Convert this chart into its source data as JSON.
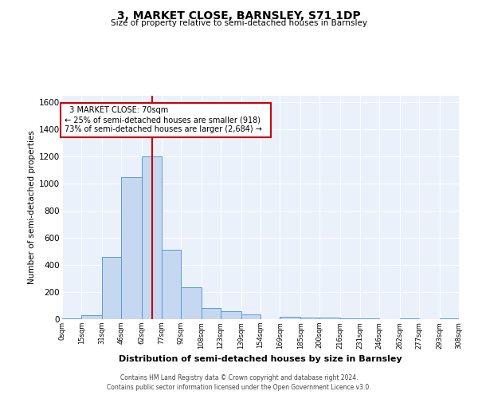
{
  "title": "3, MARKET CLOSE, BARNSLEY, S71 1DP",
  "subtitle": "Size of property relative to semi-detached houses in Barnsley",
  "xlabel": "Distribution of semi-detached houses by size in Barnsley",
  "ylabel": "Number of semi-detached properties",
  "footnote1": "Contains HM Land Registry data © Crown copyright and database right 2024.",
  "footnote2": "Contains public sector information licensed under the Open Government Licence v3.0.",
  "bar_color": "#c5d8f0",
  "bar_edge_color": "#5b9bd5",
  "bin_edges": [
    0,
    15,
    31,
    46,
    62,
    77,
    92,
    108,
    123,
    139,
    154,
    169,
    185,
    200,
    216,
    231,
    246,
    262,
    277,
    293,
    308
  ],
  "bar_heights": [
    5,
    30,
    460,
    1050,
    1200,
    510,
    235,
    85,
    60,
    35,
    0,
    20,
    10,
    10,
    5,
    5,
    0,
    5,
    0,
    5
  ],
  "tick_labels": [
    "0sqm",
    "15sqm",
    "31sqm",
    "46sqm",
    "62sqm",
    "77sqm",
    "92sqm",
    "108sqm",
    "123sqm",
    "139sqm",
    "154sqm",
    "169sqm",
    "185sqm",
    "200sqm",
    "216sqm",
    "231sqm",
    "246sqm",
    "262sqm",
    "277sqm",
    "293sqm",
    "308sqm"
  ],
  "ylim": [
    0,
    1650
  ],
  "yticks": [
    0,
    200,
    400,
    600,
    800,
    1000,
    1200,
    1400,
    1600
  ],
  "red_line_x": 70,
  "annotation_title": "3 MARKET CLOSE: 70sqm",
  "annotation_line1": "← 25% of semi-detached houses are smaller (918)",
  "annotation_line2": "73% of semi-detached houses are larger (2,684) →",
  "annotation_box_color": "#ffffff",
  "annotation_box_edge": "#cc0000",
  "red_line_color": "#cc0000",
  "background_color": "#eaf1fb",
  "grid_color": "#ffffff",
  "fig_bg": "#ffffff"
}
